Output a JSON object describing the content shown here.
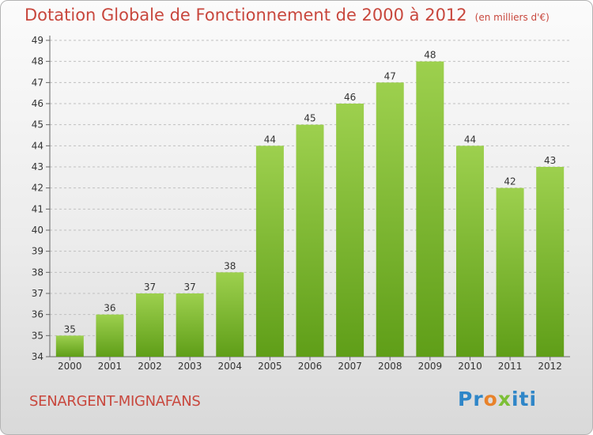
{
  "title": "Dotation Globale de Fonctionnement de 2000 à 2012",
  "unit": "(en milliers d'€)",
  "commune": "SENARGENT-MIGNAFANS",
  "logo": {
    "p1": "Pr",
    "p2": "o",
    "p3": "x",
    "p4": "iti"
  },
  "colors": {
    "bar_top": "#9dd04e",
    "bar_bottom": "#5f9e18",
    "title": "#c8473d",
    "grid": "#c0c0c0"
  },
  "chart_data": {
    "type": "bar",
    "categories": [
      "2000",
      "2001",
      "2002",
      "2003",
      "2004",
      "2005",
      "2006",
      "2007",
      "2008",
      "2009",
      "2010",
      "2011",
      "2012"
    ],
    "values": [
      35,
      36,
      37,
      37,
      38,
      44,
      45,
      46,
      47,
      48,
      44,
      42,
      43
    ],
    "title": "Dotation Globale de Fonctionnement de 2000 à 2012",
    "xlabel": "",
    "ylabel": "",
    "ylim": [
      34,
      49
    ],
    "yticks": [
      34,
      35,
      36,
      37,
      38,
      39,
      40,
      41,
      42,
      43,
      44,
      45,
      46,
      47,
      48,
      49
    ],
    "grid": true
  }
}
